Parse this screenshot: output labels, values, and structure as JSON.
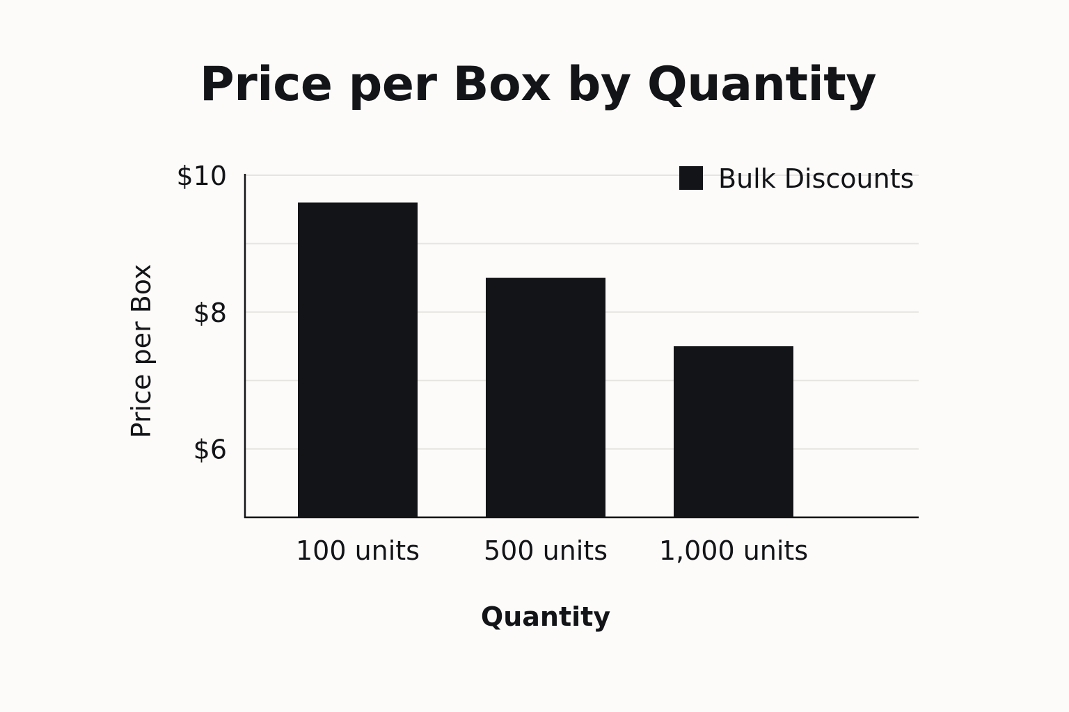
{
  "chart_data": {
    "type": "bar",
    "title": "Price per Box by Quantity",
    "xlabel": "Quantity",
    "ylabel": "Price per Box",
    "categories": [
      "100 units",
      "500 units",
      "1,000 units"
    ],
    "series": [
      {
        "name": "Bulk Discounts",
        "values": [
          9.6,
          8.5,
          7.5
        ]
      }
    ],
    "ylim": [
      5,
      10
    ],
    "yticks": [
      6,
      8,
      10
    ],
    "ytick_labels": [
      "$6",
      "$8",
      "$10"
    ],
    "grid": true,
    "legend": "top-right",
    "colors": {
      "bar": "#121417",
      "grid": "#e6e4e0",
      "axis": "#121417",
      "background": "#fcfbf9"
    }
  }
}
